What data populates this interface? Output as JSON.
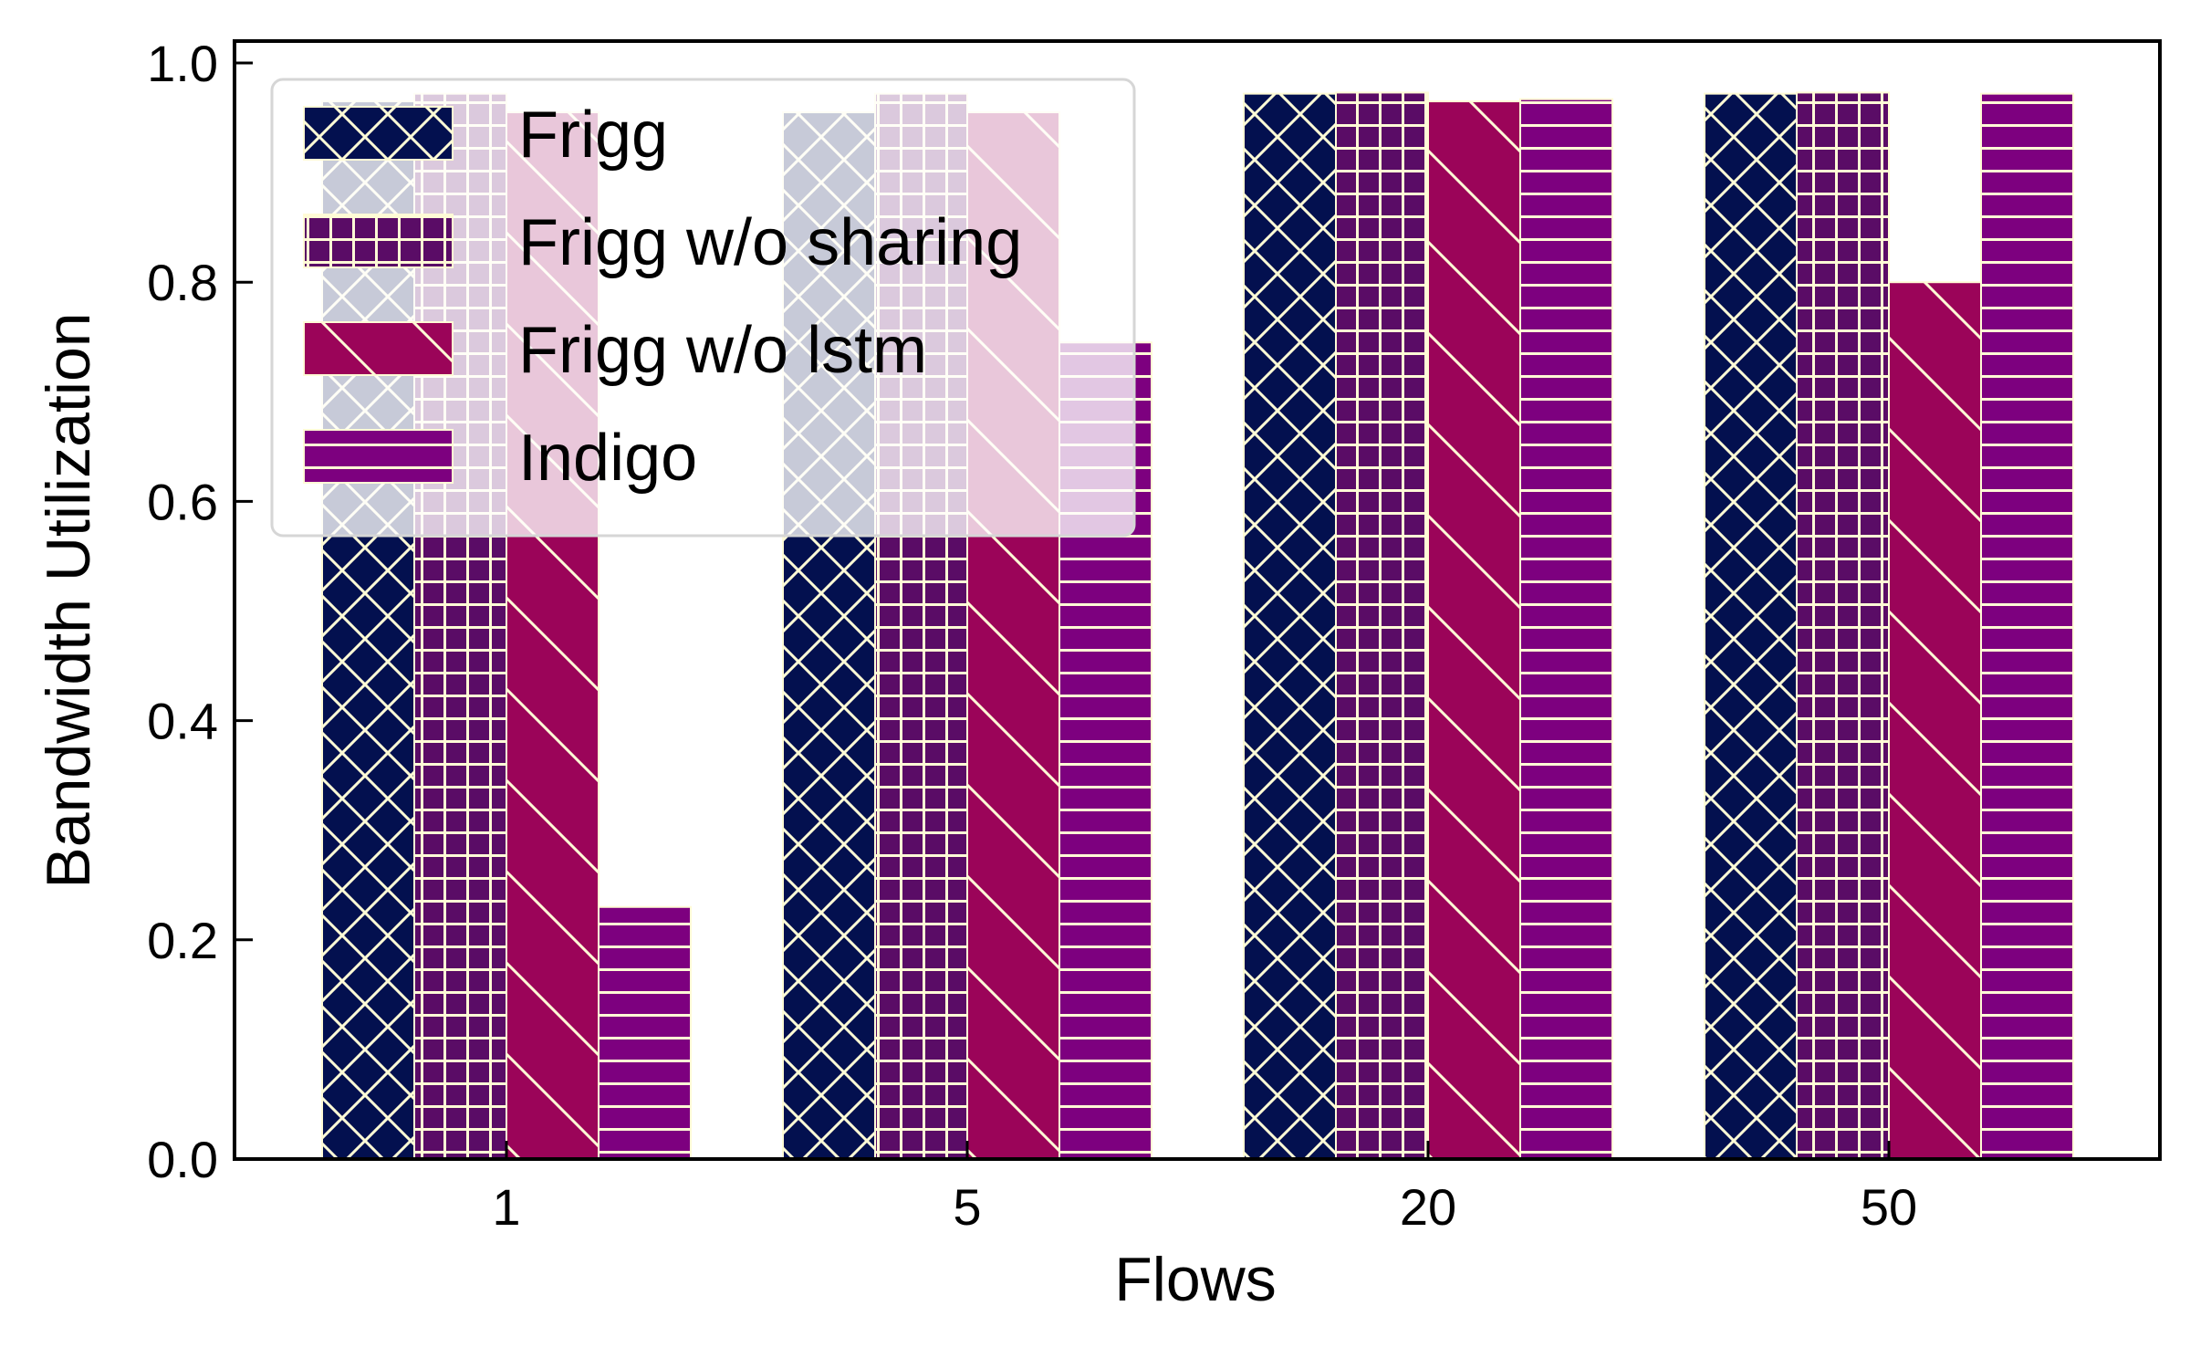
{
  "chart_data": {
    "type": "bar",
    "title": "",
    "xlabel": "Flows",
    "ylabel": "Bandwidth Utilization",
    "categories": [
      "1",
      "5",
      "20",
      "50"
    ],
    "ylim": [
      0,
      1.02
    ],
    "yticks": [
      "0.0",
      "0.2",
      "0.4",
      "0.6",
      "0.8",
      "1.0"
    ],
    "grid": false,
    "legend_position": "top-left",
    "series": [
      {
        "name": "Frigg",
        "values": [
          0.965,
          0.955,
          0.972,
          0.972
        ],
        "color": "#03104f",
        "hatch": "crosshatch-diagonal"
      },
      {
        "name": "Frigg w/o sharing",
        "values": [
          0.972,
          0.972,
          0.973,
          0.973
        ],
        "color": "#5a0c66",
        "hatch": "grid"
      },
      {
        "name": "Frigg w/o lstm",
        "values": [
          0.955,
          0.955,
          0.965,
          0.8
        ],
        "color": "#9b0459",
        "hatch": "backslash"
      },
      {
        "name": "Indigo",
        "values": [
          0.23,
          0.745,
          0.967,
          0.972
        ],
        "color": "#7d007f",
        "hatch": "horizontal"
      }
    ]
  }
}
